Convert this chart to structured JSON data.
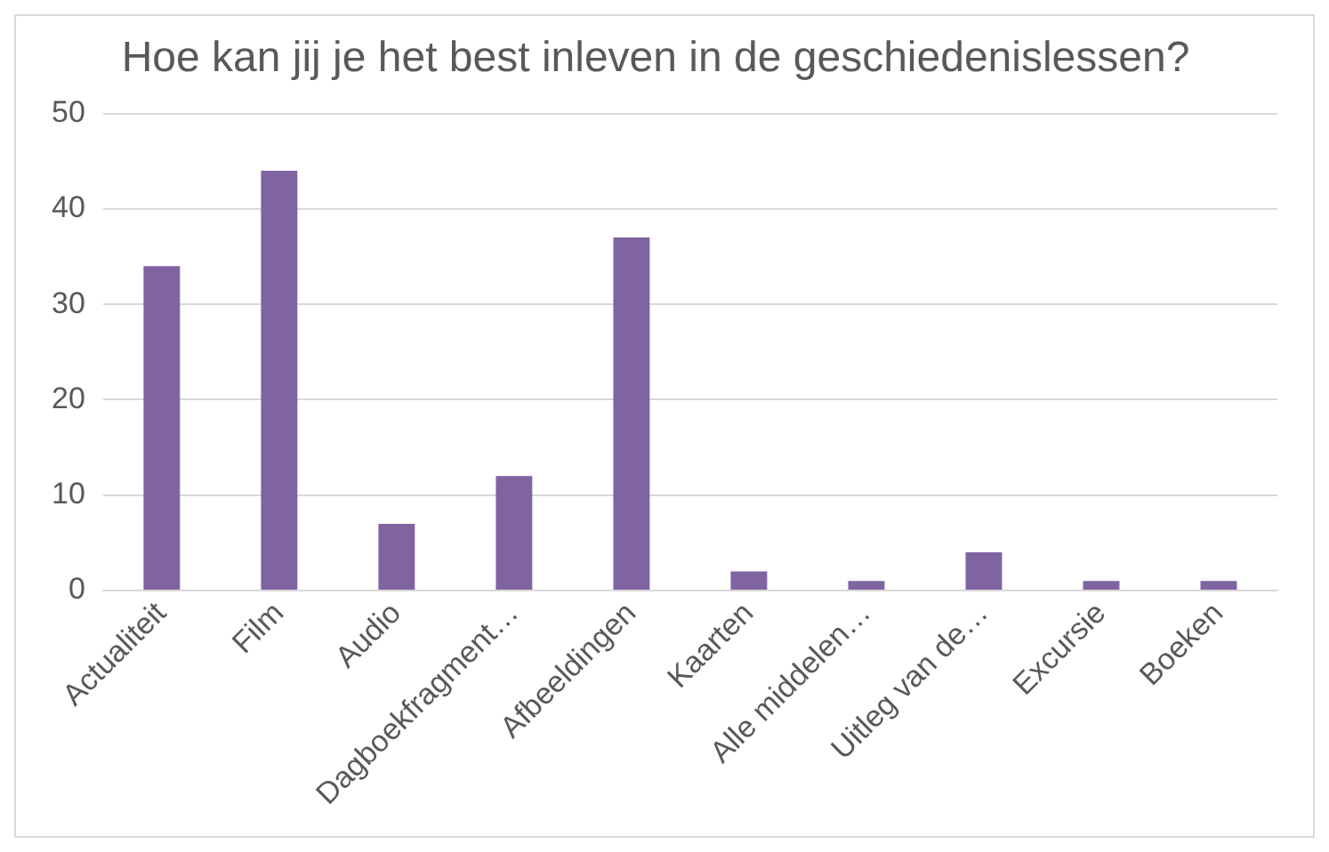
{
  "chart_data": {
    "type": "bar",
    "title": "Hoe kan jij je het best inleven in de geschiedenislessen?",
    "categories": [
      "Actualiteit",
      "Film",
      "Audio",
      "Dagboekfragment…",
      "Afbeeldingen",
      "Kaarten",
      "Alle middelen…",
      "Uitleg van de…",
      "Excursie",
      "Boeken"
    ],
    "values": [
      34,
      44,
      7,
      12,
      37,
      2,
      1,
      4,
      1,
      1
    ],
    "color": "#8064a2",
    "ylim": [
      0,
      50
    ],
    "yticks": [
      0,
      10,
      20,
      30,
      40,
      50
    ],
    "grid": "y"
  }
}
